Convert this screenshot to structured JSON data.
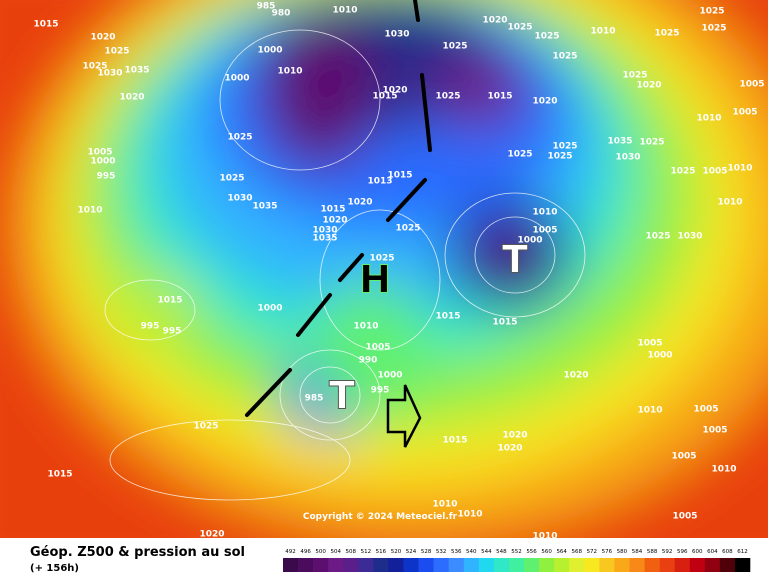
{
  "map": {
    "title": "Géop. Z500 & pression au sol",
    "subtitle": "(+ 156h)",
    "copyright": "Copyright © 2024 Meteociel.fr",
    "centers": [
      "H",
      "T",
      "T"
    ],
    "pressure_labels": [
      "1015",
      "1020",
      "1025",
      "1025",
      "1030",
      "1035",
      "1020",
      "1005",
      "1000",
      "995",
      "1010",
      "1025",
      "1025",
      "1030",
      "1035",
      "1000",
      "985",
      "980",
      "1000",
      "1010",
      "1010",
      "1030",
      "1020",
      "1015",
      "1015",
      "1013",
      "1020",
      "1015",
      "1020",
      "1030",
      "1035",
      "1025",
      "1025",
      "1000",
      "1010",
      "1005",
      "990",
      "995",
      "1000",
      "985",
      "1025",
      "1025",
      "1015",
      "1020",
      "1020",
      "1025",
      "1025",
      "1025",
      "1010",
      "1025",
      "1020",
      "1025",
      "1025",
      "1025",
      "1005",
      "1005",
      "1010",
      "1035",
      "1030",
      "1025",
      "1025",
      "1025",
      "1025",
      "1010",
      "1005",
      "1000",
      "1015",
      "1015",
      "1005",
      "1000",
      "1020",
      "1010",
      "1005",
      "1005",
      "1005",
      "1010",
      "1005",
      "1025",
      "1030",
      "1025",
      "1005",
      "1010",
      "1010",
      "1025",
      "1015",
      "1020",
      "1010",
      "1010",
      "1010",
      "1020",
      "1020",
      "1015",
      "1015",
      "995",
      "995"
    ],
    "scale": {
      "values": [
        492,
        496,
        500,
        504,
        508,
        512,
        516,
        520,
        524,
        528,
        532,
        536,
        540,
        544,
        548,
        552,
        556,
        560,
        564,
        568,
        572,
        576,
        580,
        584,
        588,
        592,
        596,
        600,
        604,
        608,
        612
      ],
      "colors": [
        "#3a0a4a",
        "#4b0c5e",
        "#5d0f70",
        "#6c1a86",
        "#5a1f8a",
        "#3c2a96",
        "#1e2c8c",
        "#12209c",
        "#0c34c8",
        "#1a4cf0",
        "#2c6cff",
        "#3c8cff",
        "#30b4ff",
        "#20d8f0",
        "#30e8c8",
        "#40f0a0",
        "#60f070",
        "#90f040",
        "#b8f030",
        "#e0f030",
        "#f8e820",
        "#f8c820",
        "#f8a818",
        "#f88818",
        "#f06010",
        "#e84010",
        "#d82010",
        "#c00010",
        "#900010",
        "#500008",
        "#000000"
      ]
    }
  }
}
